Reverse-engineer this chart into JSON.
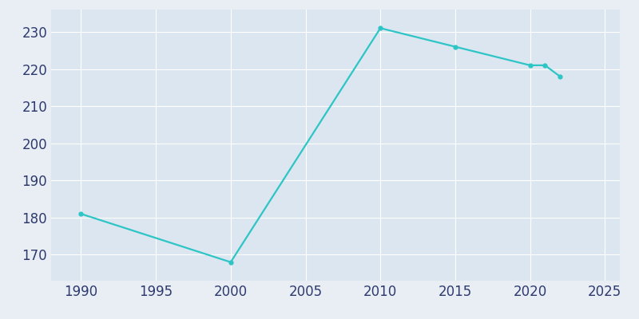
{
  "years": [
    1990,
    2000,
    2010,
    2015,
    2020,
    2021,
    2022
  ],
  "population": [
    181,
    168,
    231,
    226,
    221,
    221,
    218
  ],
  "line_color": "#2DC5C5",
  "marker": "o",
  "marker_size": 3.5,
  "line_width": 1.6,
  "background_color": "#E8EEF4",
  "plot_bg_color": "#DCE6F0",
  "grid_color": "#FFFFFF",
  "text_color": "#2E3A6E",
  "xlim": [
    1988,
    2026
  ],
  "ylim": [
    163,
    236
  ],
  "xticks": [
    1990,
    1995,
    2000,
    2005,
    2010,
    2015,
    2020,
    2025
  ],
  "yticks": [
    170,
    180,
    190,
    200,
    210,
    220,
    230
  ],
  "tick_fontsize": 12
}
